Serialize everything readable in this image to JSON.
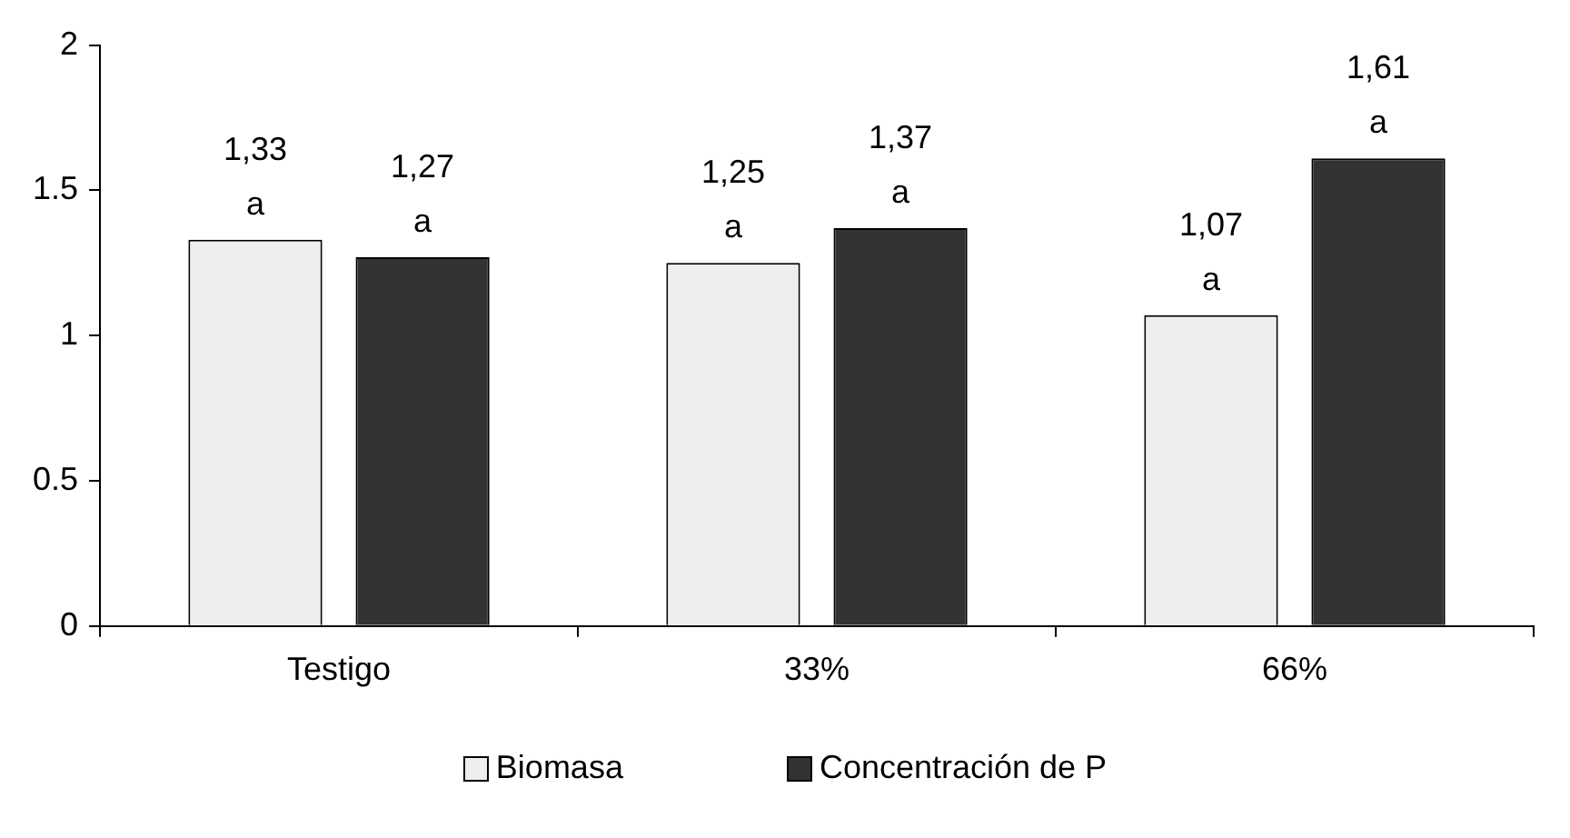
{
  "chart_data": {
    "type": "bar",
    "categories": [
      "Testigo",
      "33%",
      "66%"
    ],
    "series": [
      {
        "name": "Biomasa",
        "color": "#eeeeee",
        "values": [
          1.33,
          1.25,
          1.07
        ],
        "value_labels": [
          "1,33\na",
          "1,25\na",
          "1,07\na"
        ]
      },
      {
        "name": "Concentración de P",
        "color": "#333333",
        "values": [
          1.27,
          1.37,
          1.61
        ],
        "value_labels": [
          "1,27\na",
          "1,37\na",
          "1,61\na"
        ]
      }
    ],
    "ylim": [
      0,
      2
    ],
    "yticks": [
      0,
      0.5,
      1,
      1.5,
      2
    ],
    "grid": false,
    "legend": "bottom"
  }
}
